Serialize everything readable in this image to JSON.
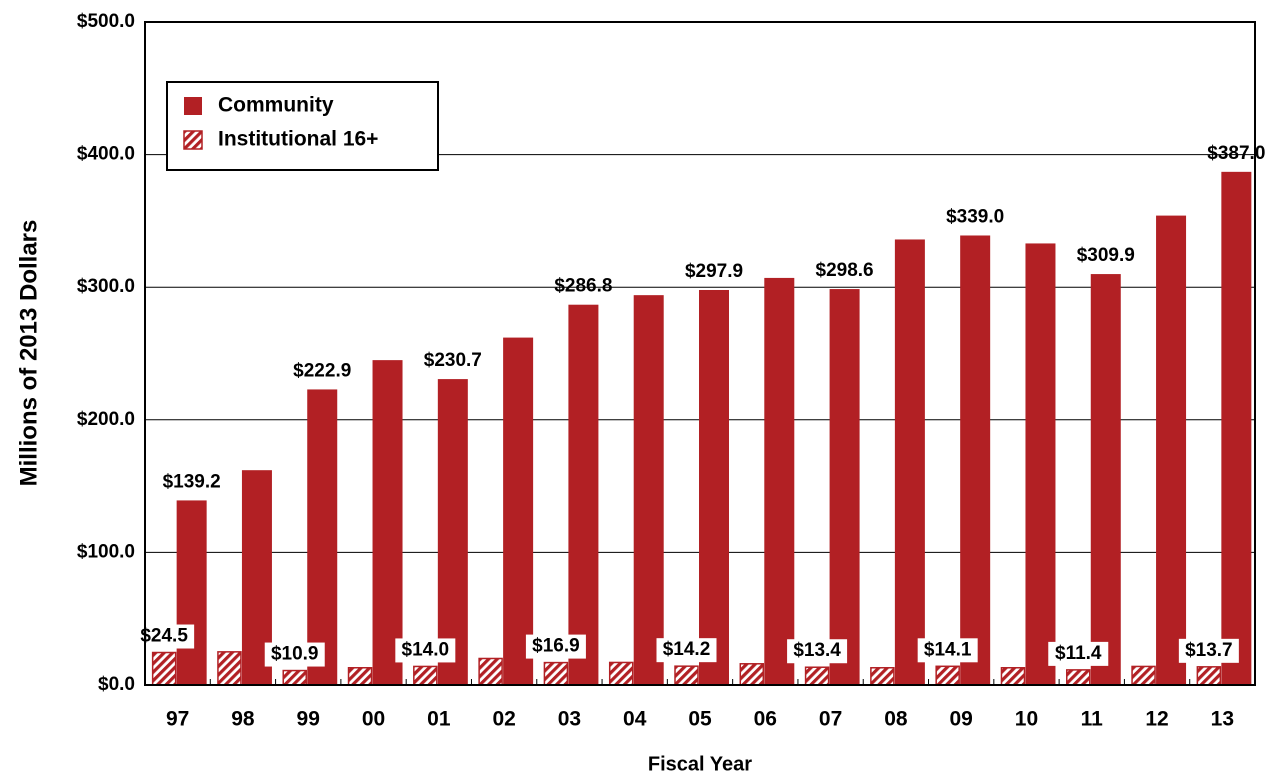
{
  "chart_data": {
    "type": "bar",
    "y_label": "Millions of 2013 Dollars",
    "x_label": "Fiscal Year",
    "categories": [
      "97",
      "98",
      "99",
      "00",
      "01",
      "02",
      "03",
      "04",
      "05",
      "06",
      "07",
      "08",
      "09",
      "10",
      "11",
      "12",
      "13"
    ],
    "series": [
      {
        "name": "Community",
        "color": "#b22024",
        "pattern": "solid",
        "values": [
          139.2,
          162,
          222.9,
          245,
          230.7,
          262,
          286.8,
          294,
          297.9,
          307,
          298.6,
          336,
          339.0,
          333,
          309.9,
          354,
          387.0
        ],
        "value_labels": [
          "$139.2",
          null,
          "$222.9",
          null,
          "$230.7",
          null,
          "$286.8",
          null,
          "$297.9",
          null,
          "$298.6",
          null,
          "$339.0",
          null,
          "$309.9",
          null,
          "$387.0"
        ]
      },
      {
        "name": "Institutional 16+",
        "color": "#b22024",
        "pattern": "hatch",
        "values": [
          24.5,
          25,
          10.9,
          13,
          14.0,
          20,
          16.9,
          17,
          14.2,
          16,
          13.4,
          13,
          14.1,
          13,
          11.4,
          14,
          13.7
        ],
        "value_labels": [
          "$24.5",
          null,
          "$10.9",
          null,
          "$14.0",
          null,
          "$16.9",
          null,
          "$14.2",
          null,
          "$13.4",
          null,
          "$14.1",
          null,
          "$11.4",
          null,
          "$13.7"
        ]
      }
    ],
    "ylim": [
      0,
      500
    ],
    "yticks": [
      {
        "value": 0,
        "label": "$0.0"
      },
      {
        "value": 100,
        "label": "$100.0"
      },
      {
        "value": 200,
        "label": "$200.0"
      },
      {
        "value": 300,
        "label": "$300.0"
      },
      {
        "value": 400,
        "label": "$400.0"
      },
      {
        "value": 500,
        "label": "$500.0"
      }
    ],
    "grid": true,
    "legend": "upper left"
  }
}
